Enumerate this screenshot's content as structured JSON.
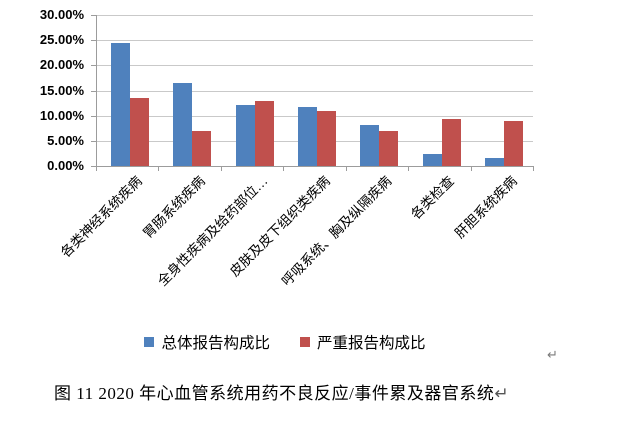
{
  "chart_data": {
    "type": "bar",
    "title": "",
    "categories": [
      "各类神经系统疾病",
      "胃肠系统疾病",
      "全身性疾病及给药部位…",
      "皮肤及皮下组织类疾病",
      "呼吸系统、胸及纵隔疾病",
      "各类检查",
      "肝胆系统疾病"
    ],
    "series": [
      {
        "name": "总体报告构成比",
        "color": "#4F81BD",
        "values": [
          24.5,
          16.4,
          12.1,
          11.8,
          8.2,
          2.3,
          1.5
        ]
      },
      {
        "name": "严重报告构成比",
        "color": "#C0504D",
        "values": [
          13.6,
          7.0,
          12.9,
          11.0,
          7.0,
          9.4,
          8.9
        ]
      }
    ],
    "y_axis": {
      "min": 0,
      "max": 30,
      "step": 5,
      "tick_labels": [
        "0.00%",
        "5.00%",
        "10.00%",
        "15.00%",
        "20.00%",
        "25.00%",
        "30.00%"
      ]
    },
    "xlabel": "",
    "ylabel": "",
    "grid": true,
    "legend_position": "bottom"
  },
  "figure": {
    "caption": "图 11  2020 年心血管系统用药不良反应/事件累及器官系统",
    "caption_paragraph_mark": "↵",
    "after_chart_paragraph_mark": "↵"
  },
  "colors": {
    "series_blue": "#4F81BD",
    "series_red": "#C0504D",
    "gridline": "#C9C9C9",
    "axis": "#9C9C9C",
    "paragraph_mark": "#7A7A7A",
    "background": "#FFFFFF"
  }
}
